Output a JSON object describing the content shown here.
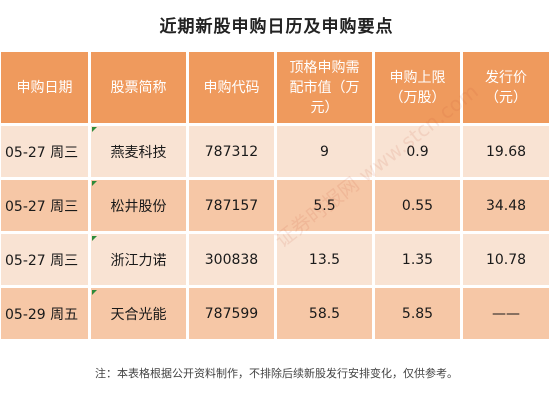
{
  "title": "近期新股申购日历及申购要点",
  "table": {
    "headers": [
      "申购日期",
      "股票简称",
      "申购代码",
      "顶格申购需配市值（万元）",
      "申购上限（万股）",
      "发行价（元）"
    ],
    "rows": [
      {
        "date": "05-27 周三",
        "name": "燕麦科技",
        "code": "787312",
        "cap": "9",
        "limit": "0.9",
        "price": "19.68"
      },
      {
        "date": "05-27 周三",
        "name": "松井股份",
        "code": "787157",
        "cap": "5.5",
        "limit": "0.55",
        "price": "34.48"
      },
      {
        "date": "05-27 周三",
        "name": "浙江力诺",
        "code": "300838",
        "cap": "13.5",
        "limit": "1.35",
        "price": "10.78"
      },
      {
        "date": "05-29 周五",
        "name": "天合光能",
        "code": "787599",
        "cap": "58.5",
        "limit": "5.85",
        "price": "——"
      }
    ]
  },
  "note": "注：本表格根据公开资料制作，不排除后续新股发行安排变化，仅供参考。",
  "watermark": "证券时报网 www.stcn.com",
  "colors": {
    "header_bg": "#ef9a5d",
    "row_light": "#f9e3d3",
    "row_dark": "#f6c7a6"
  }
}
